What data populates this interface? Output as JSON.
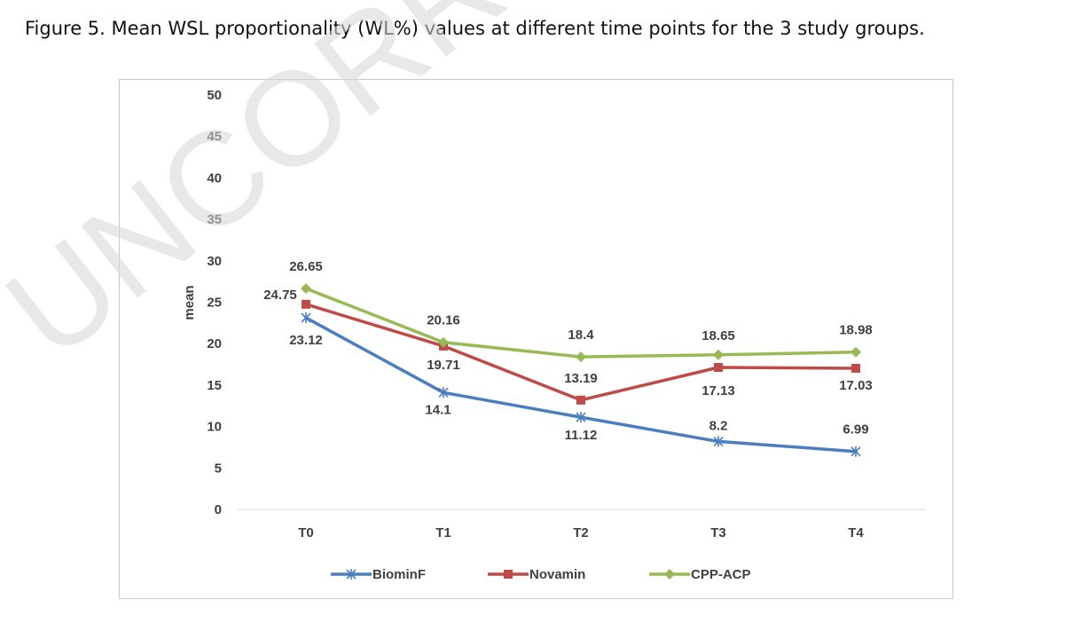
{
  "caption": "Figure 5. Mean WSL proportionality (WL%) values at different time points for the 3 study groups.",
  "watermark": "UNCORRECTED PROOF",
  "chart_data": {
    "type": "line",
    "title": "",
    "xlabel": "",
    "ylabel": "mean",
    "ylim": [
      0,
      50
    ],
    "yticks": [
      0,
      5,
      10,
      15,
      20,
      25,
      30,
      35,
      40,
      45,
      50
    ],
    "categories": [
      "T0",
      "T1",
      "T2",
      "T3",
      "T4"
    ],
    "grid": false,
    "legend": "bottom",
    "series": [
      {
        "name": "BiominF",
        "color": "#4a7ebf",
        "marker": "star",
        "values": [
          23.12,
          14.1,
          11.12,
          8.2,
          6.99
        ],
        "labels": [
          "23.12",
          "14.1",
          "11.12",
          "8.2",
          "6.99"
        ]
      },
      {
        "name": "Novamin",
        "color": "#be4b48",
        "marker": "square",
        "values": [
          24.75,
          19.71,
          13.19,
          17.13,
          17.03
        ],
        "labels": [
          "24.75",
          "19.71",
          "13.19",
          "17.13",
          "17.03"
        ]
      },
      {
        "name": "CPP-ACP",
        "color": "#98b954",
        "marker": "diamond",
        "values": [
          26.65,
          20.16,
          18.4,
          18.65,
          18.98
        ],
        "labels": [
          "26.65",
          "20.16",
          "18.4",
          "18.65",
          "18.98"
        ]
      }
    ]
  }
}
